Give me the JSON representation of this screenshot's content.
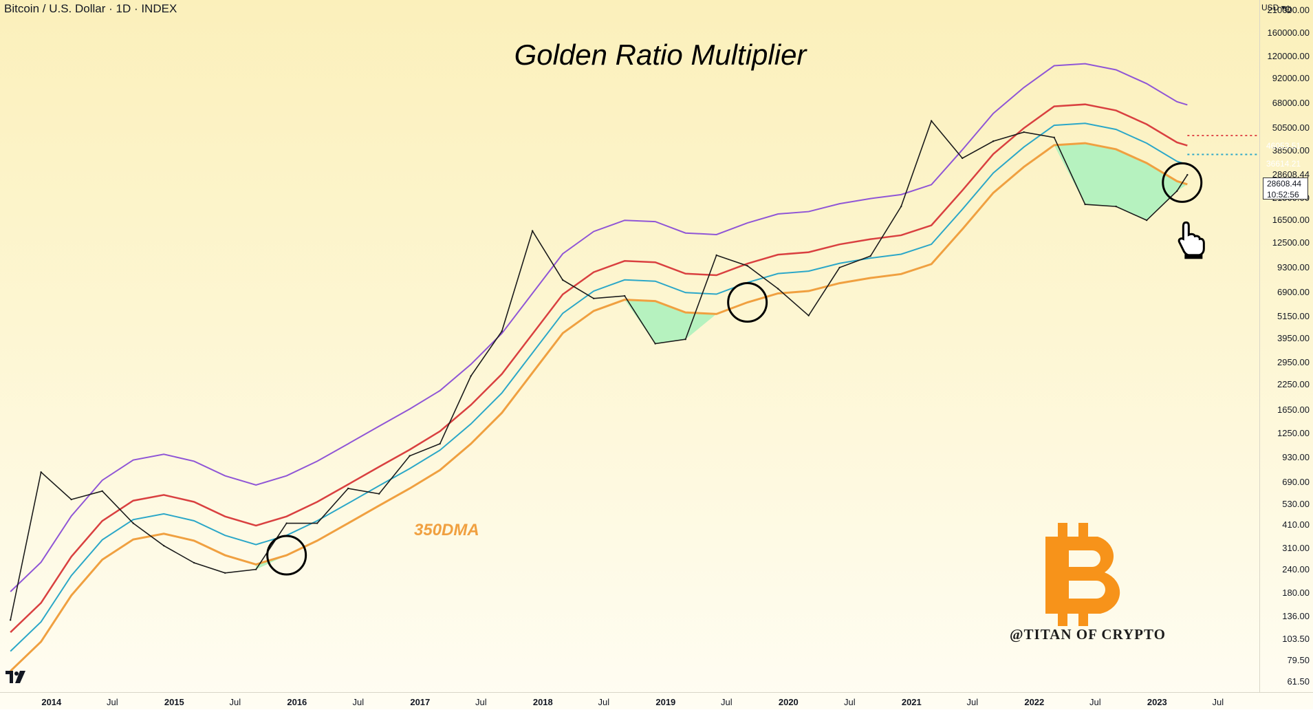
{
  "header": {
    "symbol": "Bitcoin / U.S. Dollar · 1D · INDEX"
  },
  "title": "Golden Ratio Multiplier",
  "ma_label": "350DMA",
  "watermark": "@TITAN OF CRYPTO",
  "currency": "USD",
  "price_scale": [
    "210000.00",
    "160000.00",
    "120000.00",
    "92000.00",
    "68000.00",
    "50500.00",
    "38500.00",
    "28608.44",
    "21500.00",
    "16500.00",
    "12500.00",
    "9300.00",
    "6900.00",
    "5150.00",
    "3950.00",
    "2950.00",
    "2250.00",
    "1650.00",
    "1250.00",
    "930.00",
    "690.00",
    "530.00",
    "410.00",
    "310.00",
    "240.00",
    "180.00",
    "136.00",
    "103.50",
    "79.50",
    "61.50"
  ],
  "time_scale": [
    {
      "label": "2014",
      "year": true
    },
    {
      "label": "Jul",
      "year": false
    },
    {
      "label": "2015",
      "year": true
    },
    {
      "label": "Jul",
      "year": false
    },
    {
      "label": "2016",
      "year": true
    },
    {
      "label": "Jul",
      "year": false
    },
    {
      "label": "2017",
      "year": true
    },
    {
      "label": "Jul",
      "year": false
    },
    {
      "label": "2018",
      "year": true
    },
    {
      "label": "Jul",
      "year": false
    },
    {
      "label": "2019",
      "year": true
    },
    {
      "label": "Jul",
      "year": false
    },
    {
      "label": "2020",
      "year": true
    },
    {
      "label": "Jul",
      "year": false
    },
    {
      "label": "2021",
      "year": true
    },
    {
      "label": "Jul",
      "year": false
    },
    {
      "label": "2022",
      "year": true
    },
    {
      "label": "Jul",
      "year": false
    },
    {
      "label": "2023",
      "year": true
    },
    {
      "label": "Jul",
      "year": false
    }
  ],
  "price_tags": {
    "red": {
      "value": "46053.51",
      "color": "#e04a4a"
    },
    "blue": {
      "value": "36614.21",
      "color": "#2ba7c8"
    },
    "last": {
      "value": "28608.44",
      "countdown": "10:52:56"
    }
  },
  "colors": {
    "price": "#1b1b1b",
    "dma350": "#f0a040",
    "blue": "#2ba7c8",
    "red": "#d94040",
    "purple": "#8f55d6",
    "fill": "#b6f2bf"
  },
  "icons": [
    "tradingview-logo-icon",
    "bitcoin-logo-icon",
    "pointing-hand-icon",
    "settings-gear-icon",
    "chevron-down-icon"
  ],
  "chart_data": {
    "type": "line",
    "title": "Golden Ratio Multiplier",
    "yscale": "log",
    "ylim": [
      61.5,
      210000
    ],
    "xlim": [
      "2013-08-01",
      "2023-11-01"
    ],
    "x": [
      "2013-09",
      "2013-12",
      "2014-03",
      "2014-06",
      "2014-09",
      "2014-12",
      "2015-03",
      "2015-06",
      "2015-09",
      "2015-12",
      "2016-03",
      "2016-06",
      "2016-09",
      "2016-12",
      "2017-03",
      "2017-06",
      "2017-09",
      "2017-12",
      "2018-03",
      "2018-06",
      "2018-09",
      "2018-12",
      "2019-03",
      "2019-06",
      "2019-09",
      "2019-12",
      "2020-03",
      "2020-06",
      "2020-09",
      "2020-12",
      "2021-03",
      "2021-06",
      "2021-09",
      "2021-12",
      "2022-03",
      "2022-06",
      "2022-09",
      "2022-12",
      "2023-03",
      "2023-04"
    ],
    "series": [
      {
        "name": "350DMA",
        "values": [
          70,
          100,
          175,
          270,
          345,
          370,
          340,
          285,
          255,
          285,
          340,
          420,
          520,
          640,
          800,
          1100,
          1600,
          2600,
          4200,
          5500,
          6300,
          6200,
          5400,
          5300,
          6100,
          6800,
          7000,
          7700,
          8200,
          8600,
          9700,
          14800,
          23000,
          31500,
          41000,
          42000,
          39000,
          33000,
          26500,
          25500
        ]
      },
      {
        "name": "Price",
        "values": [
          130,
          780,
          560,
          620,
          420,
          320,
          260,
          230,
          240,
          420,
          420,
          640,
          600,
          950,
          1100,
          2500,
          4300,
          14500,
          8000,
          6400,
          6600,
          3700,
          3900,
          10800,
          9500,
          7200,
          5200,
          9300,
          10700,
          19500,
          55000,
          35000,
          43000,
          48000,
          45000,
          20000,
          19500,
          16500,
          23500,
          28608.44
        ]
      }
    ]
  }
}
